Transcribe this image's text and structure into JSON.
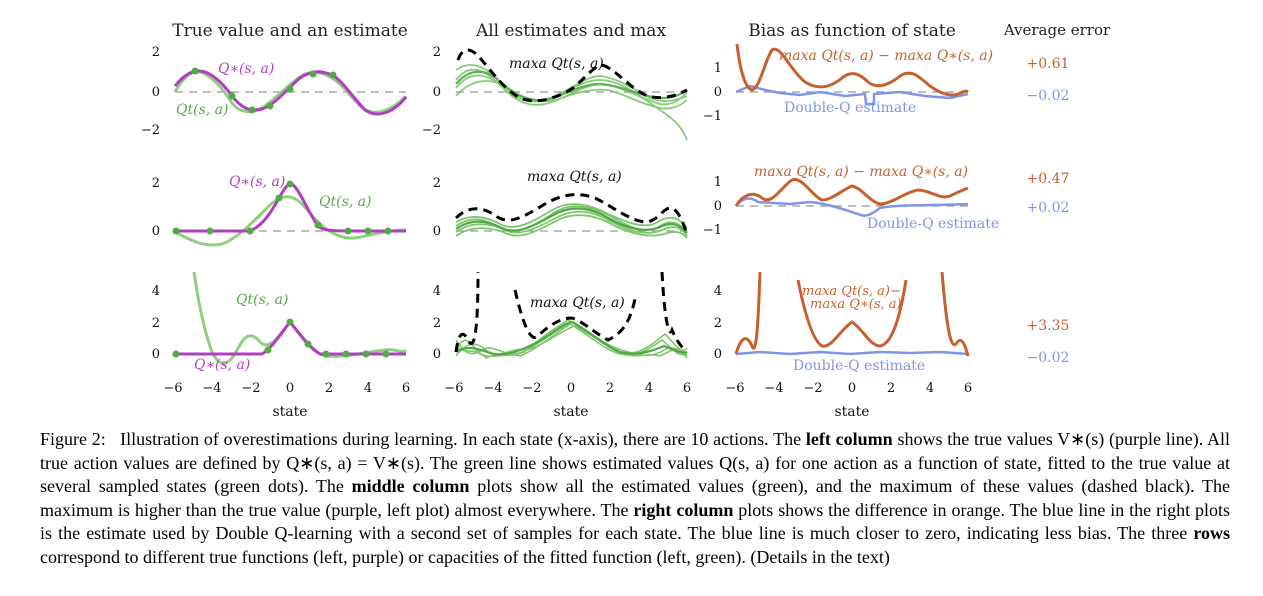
{
  "figure": {
    "column_titles": [
      "True value and an estimate",
      "All estimates and max",
      "Bias as function of state"
    ],
    "avg_title": "Average error",
    "xlabel": "state",
    "xticks": [
      "−6",
      "−4",
      "−2",
      "0",
      "2",
      "4",
      "6"
    ],
    "row1": {
      "left_yticks": [
        "2",
        "0",
        "−2"
      ],
      "mid_yticks": [
        "2",
        "0",
        "−2"
      ],
      "right_yticks": [
        "1",
        "0",
        "−1"
      ],
      "label_true": "Q∗(s, a)",
      "label_est": "Qt(s, a)",
      "label_max": "maxa Qt(s, a)",
      "label_bias": "maxa Qt(s, a) − maxa Q∗(s, a)",
      "label_dq": "Double-Q estimate",
      "avg_bias": "+0.61",
      "avg_dq": "−0.02"
    },
    "row2": {
      "left_yticks": [
        "2",
        "0"
      ],
      "mid_yticks": [
        "2",
        "0"
      ],
      "right_yticks": [
        "1",
        "0",
        "−1"
      ],
      "label_true": "Q∗(s, a)",
      "label_est": "Qt(s, a)",
      "label_max": "maxa Qt(s, a)",
      "label_bias": "maxa Qt(s, a) − maxa Q∗(s, a)",
      "label_dq": "Double-Q estimate",
      "avg_bias": "+0.47",
      "avg_dq": "+0.02"
    },
    "row3": {
      "left_yticks": [
        "4",
        "2",
        "0"
      ],
      "mid_yticks": [
        "4",
        "2",
        "0"
      ],
      "right_yticks": [
        "4",
        "2",
        "0"
      ],
      "label_true": "Q∗(s, a)",
      "label_est": "Qt(s, a)",
      "label_max": "maxa Qt(s, a)",
      "label_bias_1": "maxa Qt(s, a)−",
      "label_bias_2": "maxa Q∗(s, a)",
      "label_dq": "Double-Q estimate",
      "avg_bias": "+3.35",
      "avg_dq": "−0.02"
    }
  },
  "colors": {
    "true_value": "#b43cc4",
    "estimate": "#6cbf5c",
    "bias": "#c8602e",
    "double_q": "#7f95e8",
    "max_dashed": "#000000"
  },
  "caption": {
    "figure_label": "Figure 2:",
    "text_1": "Illustration of overestimations during learning. In each state (x-axis), there are 10 actions. The",
    "bold_left": "left column",
    "text_2": "shows the true values V∗(s) (purple line). All true action values are defined by Q∗(s, a) = V∗(s). The green line shows estimated values Q(s, a) for one action as a function of state, fitted to the true value at several sampled states (green dots). The",
    "bold_middle": "middle column",
    "text_3": "plots show all the estimated values (green), and the maximum of these values (dashed black). The maximum is higher than the true value (purple, left plot) almost everywhere. The",
    "bold_right": "right column",
    "text_4": "plots shows the difference in orange. The blue line in the right plots is the estimate used by Double Q-learning with a second set of samples for each state. The blue line is much closer to zero, indicating less bias. The three",
    "bold_rows": "rows",
    "text_5": "correspond to different true functions (left, purple) or capacities of the fitted function (left, green). (Details in the text)"
  }
}
